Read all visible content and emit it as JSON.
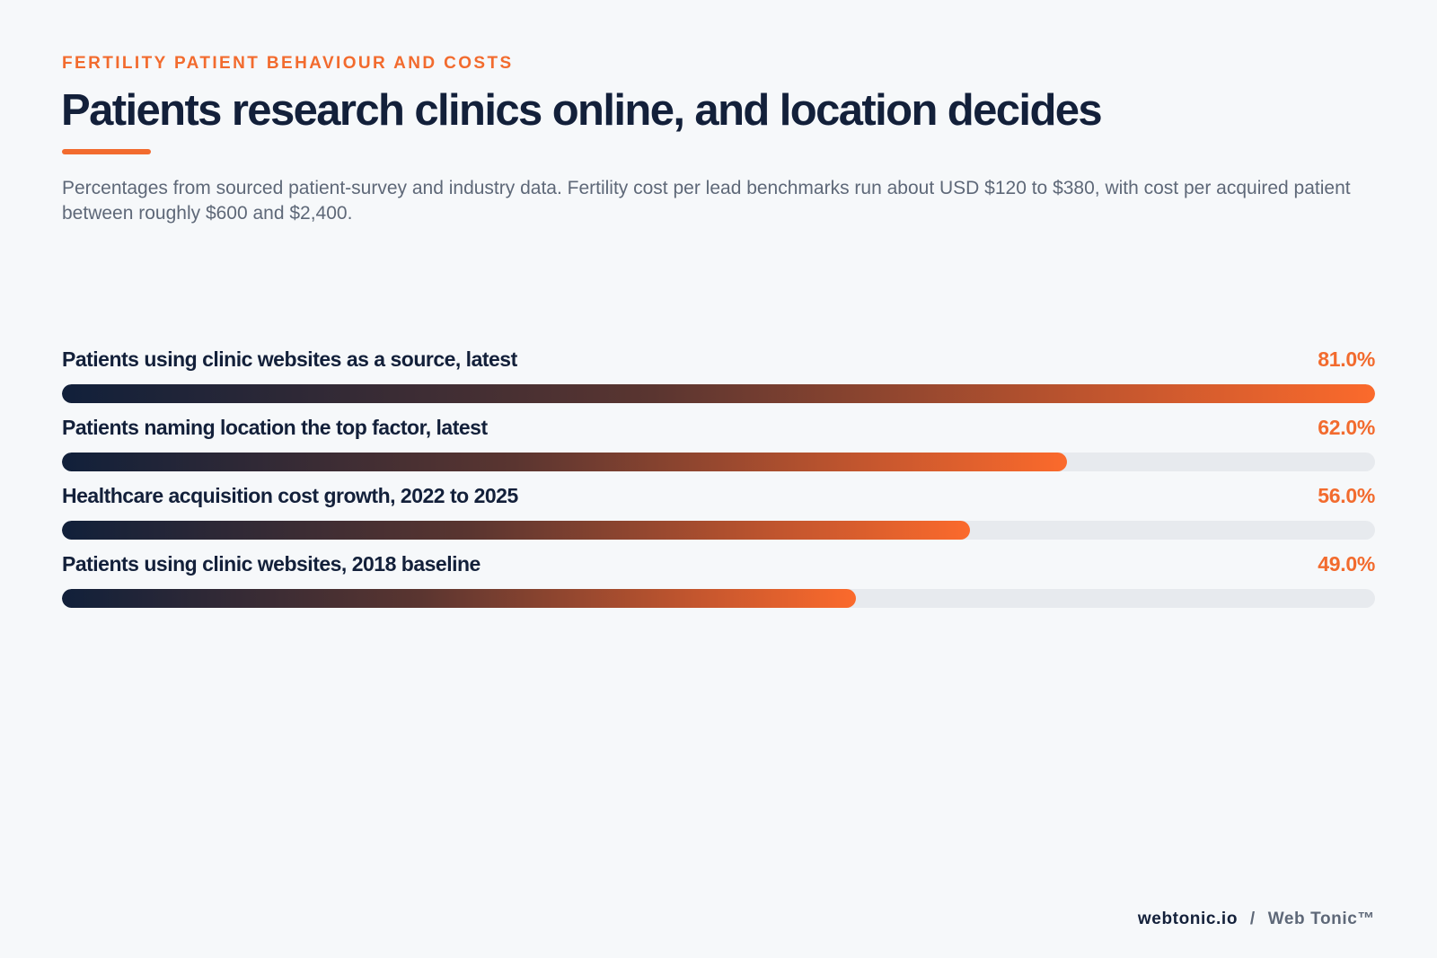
{
  "eyebrow": "FERTILITY PATIENT BEHAVIOUR AND COSTS",
  "title": "Patients research clinics online, and location decides",
  "subtitle": "Percentages from sourced patient-survey and industry data. Fertility cost per lead benchmarks run about USD $120 to $380, with cost per acquired patient between roughly $600 and $2,400.",
  "footer": {
    "site": "webtonic.io",
    "separator": "/",
    "brand": "Web Tonic™"
  },
  "colors": {
    "accent": "#f26b2e",
    "navy": "#13203a",
    "track": "#e7eaee"
  },
  "chart_data": {
    "type": "bar",
    "orientation": "horizontal",
    "categories": [
      "Patients using clinic websites as a source, latest",
      "Patients naming location the top factor, latest",
      "Healthcare acquisition cost growth, 2022 to 2025",
      "Patients using clinic websites, 2018 baseline"
    ],
    "values": [
      81.0,
      62.0,
      56.0,
      49.0
    ],
    "value_labels": [
      "81.0%",
      "62.0%",
      "56.0%",
      "49.0%"
    ],
    "xlim": [
      0,
      81.0
    ],
    "grid": false,
    "legend": "none"
  }
}
